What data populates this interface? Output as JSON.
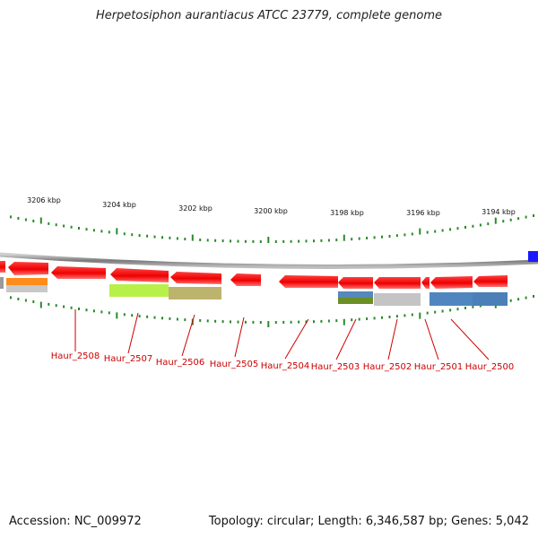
{
  "title": "Herpetosiphon aurantiacus ATCC 23779, complete genome",
  "footer": {
    "accession": "Accession: NC_009972",
    "topology": "Topology: circular; Length: 6,346,587 bp; Genes: 5,042"
  },
  "scale_labels": [
    "3206 kbp",
    "3204 kbp",
    "3202 kbp",
    "3200 kbp",
    "3198 kbp",
    "3196 kbp",
    "3194 kbp"
  ],
  "gene_labels": [
    "Haur_2508",
    "Haur_2507",
    "Haur_2506",
    "Haur_2505",
    "Haur_2504",
    "Haur_2503",
    "Haur_2502",
    "Haur_2501",
    "Haur_2500"
  ],
  "colors": {
    "gene": "#ff1a1a",
    "label": "#cc0000",
    "tick": "#2a8a2a",
    "backbone": "#888888",
    "blue_marker": "#1a1aff"
  }
}
